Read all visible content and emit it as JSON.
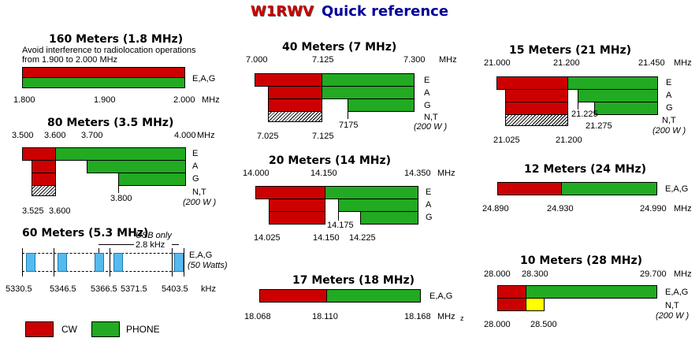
{
  "title": {
    "call": "W1RWV",
    "subtitle": "Quick reference"
  },
  "colors": {
    "cw": "#cc0000",
    "phone": "#22aa22",
    "usb_channel": "#55bbee",
    "rtty_extra": "#ffff00"
  },
  "band160": {
    "heading": "160 Meters (1.8 MHz)",
    "note1": "Avoid interference to radiolocation operations",
    "note2": "from 1.900 to 2.000 MHz",
    "label": "E,A,G",
    "ticks": [
      "1.800",
      "1.900",
      "2.000",
      "MHz"
    ]
  },
  "band80": {
    "heading": "80 Meters (3.5 MHz)",
    "top": [
      "3.500",
      "3.600",
      "3.700",
      "4.000",
      "MHz"
    ],
    "classes": [
      "E",
      "A",
      "G",
      "N,T"
    ],
    "power": "(200 W )",
    "bottom": [
      "3.525",
      "3.600",
      "3.800"
    ]
  },
  "band60": {
    "heading": "60 Meters (5.3 MHz)",
    "usb": "USB only",
    "bw": "2.8 kHz",
    "label": "E,A,G",
    "power": "(50 Watts)",
    "freqs": [
      "5330.5",
      "5346.5",
      "5366.5",
      "5371.5",
      "5403.5",
      "kHz"
    ]
  },
  "legend": {
    "cw": "CW",
    "phone": "PHONE"
  },
  "band40": {
    "heading": "40 Meters (7 MHz)",
    "top": [
      "7.000",
      "7.125",
      "7.300",
      "MHz"
    ],
    "classes": [
      "E",
      "A",
      "G",
      "N,T"
    ],
    "power": "(200 W )",
    "bottom": [
      "7175",
      "7.025",
      "7.125"
    ]
  },
  "band20": {
    "heading": "20 Meters (14 MHz)",
    "top": [
      "14.000",
      "14.150",
      "14.350",
      "MHz"
    ],
    "classes": [
      "E",
      "A",
      "G"
    ],
    "bottom": [
      "14.175",
      "14.025",
      "14.150",
      "14.225"
    ]
  },
  "band17": {
    "heading": "17 Meters (18 MHz)",
    "label": "E,A,G",
    "ticks": [
      "18.068",
      "18.110",
      "18.168",
      "MHz",
      "z"
    ]
  },
  "band15": {
    "heading": "15 Meters (21 MHz)",
    "top": [
      "21.000",
      "21.200",
      "21.450",
      "MHz"
    ],
    "classes": [
      "E",
      "A",
      "G",
      "N,T"
    ],
    "power": "(200 W )",
    "bottom": [
      "21.225",
      "21.275",
      "21.025",
      "21.200"
    ]
  },
  "band12": {
    "heading": "12 Meters (24 MHz)",
    "label": "E,A,G",
    "ticks": [
      "24.890",
      "24.930",
      "24.990",
      "MHz"
    ]
  },
  "band10": {
    "heading": "10 Meters (28 MHz)",
    "top": [
      "28.000",
      "28.300",
      "29.700",
      "MHz"
    ],
    "label": "E,A,G",
    "nt": "N,T",
    "power": "(200 W )",
    "bottom": [
      "28.000",
      "28.500"
    ]
  }
}
